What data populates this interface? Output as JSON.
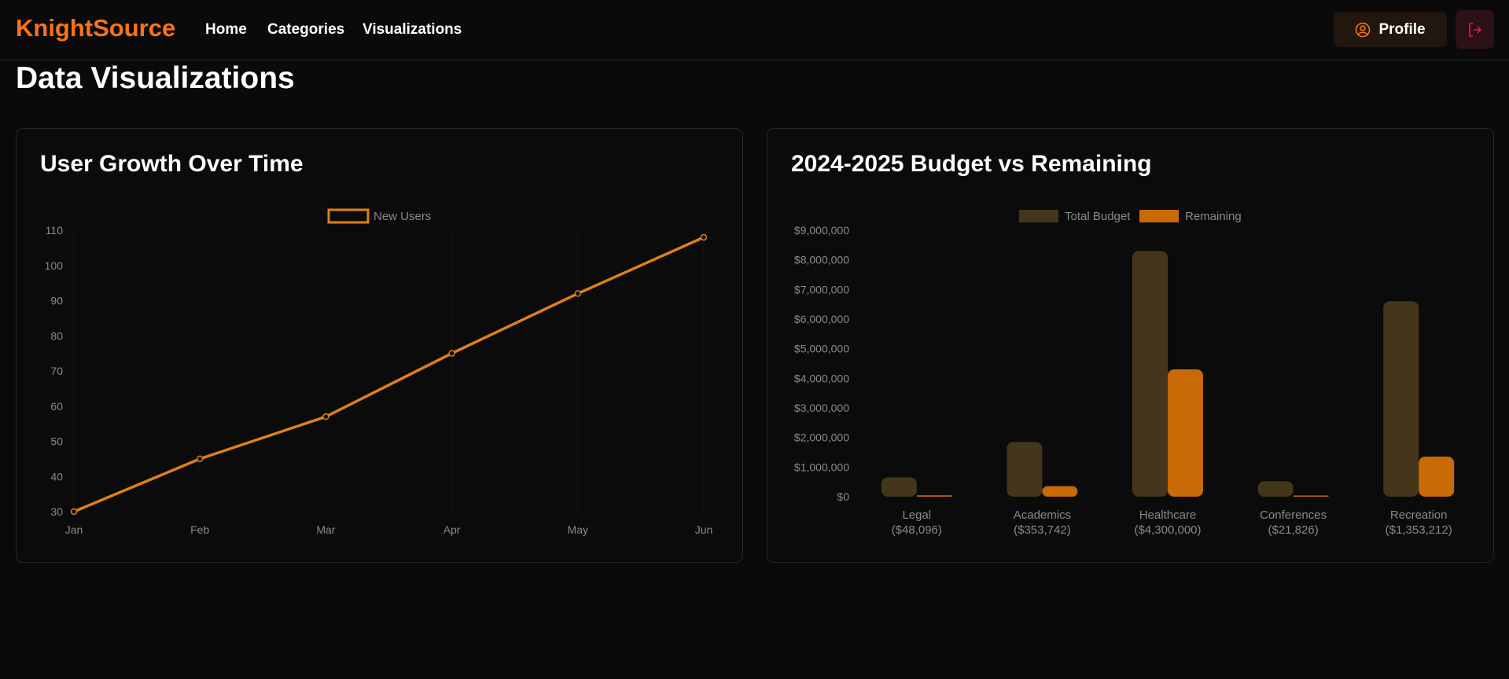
{
  "brand": "KnightSource",
  "nav": {
    "links": [
      "Home",
      "Categories",
      "Visualizations"
    ],
    "profile_label": "Profile"
  },
  "page_title": "Data Visualizations",
  "colors": {
    "accent": "#f97316",
    "line": "#e07f18",
    "budget": "#43361a",
    "remaining": "#c86a06"
  },
  "cards": {
    "line_title": "User Growth Over Time",
    "bar_title": "2024-2025 Budget vs Remaining"
  },
  "chart_data": [
    {
      "type": "line",
      "title": "User Growth Over Time",
      "categories": [
        "Jan",
        "Feb",
        "Mar",
        "Apr",
        "May",
        "Jun"
      ],
      "series": [
        {
          "name": "New Users",
          "values": [
            30,
            45,
            57,
            75,
            92,
            108
          ]
        }
      ],
      "ylim": [
        30,
        110
      ],
      "yticks": [
        "110",
        "100",
        "90",
        "80",
        "70",
        "60",
        "50",
        "40",
        "30"
      ],
      "legend": "top-center"
    },
    {
      "type": "bar",
      "title": "2024-2025 Budget vs Remaining",
      "categories": [
        "Legal",
        "Academics",
        "Healthcare",
        "Conferences",
        "Recreation"
      ],
      "category_sublabels": [
        "($48,096)",
        "($353,742)",
        "($4,300,000)",
        "($21,826)",
        "($1,353,212)"
      ],
      "series": [
        {
          "name": "Total Budget",
          "values": [
            650000,
            1850000,
            8300000,
            520000,
            6600000
          ]
        },
        {
          "name": "Remaining",
          "values": [
            48096,
            353742,
            4300000,
            21826,
            1353212
          ]
        }
      ],
      "ylim": [
        0,
        9000000
      ],
      "yticks": [
        "$9,000,000",
        "$8,000,000",
        "$7,000,000",
        "$6,000,000",
        "$5,000,000",
        "$4,000,000",
        "$3,000,000",
        "$2,000,000",
        "$1,000,000",
        "$0"
      ],
      "legend": "top-center"
    }
  ]
}
